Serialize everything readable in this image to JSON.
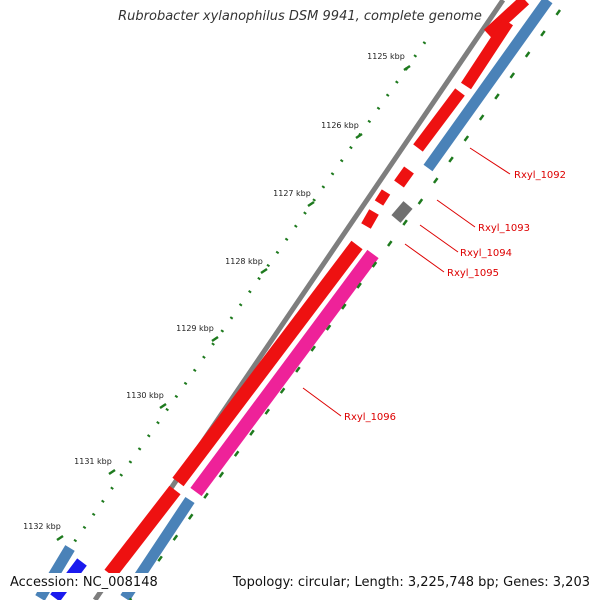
{
  "title": "Rubrobacter xylanophilus DSM 9941, complete genome",
  "accession": "Accession: NC_008148",
  "summary": "Topology: circular; Length: 3,225,748 bp; Genes: 3,203",
  "scale_ticks": [
    "1125 kbp",
    "1126 kbp",
    "1127 kbp",
    "1128 kbp",
    "1129 kbp",
    "1130 kbp",
    "1131 kbp",
    "1132 kbp"
  ],
  "gene_labels": [
    "Rxyl_1092",
    "Rxyl_1093",
    "Rxyl_1094",
    "Rxyl_1095",
    "Rxyl_1096"
  ],
  "colors": {
    "backbone": "#8c8c8c",
    "forward_gene": "#ee1111",
    "reverse_gene": "#4a82b8",
    "highlight_gene": "#ee2299",
    "pseudo_gene": "#707070",
    "blue_gene": "#1a1aee",
    "tick": "#1e7a1e",
    "label": "#dd0000"
  }
}
